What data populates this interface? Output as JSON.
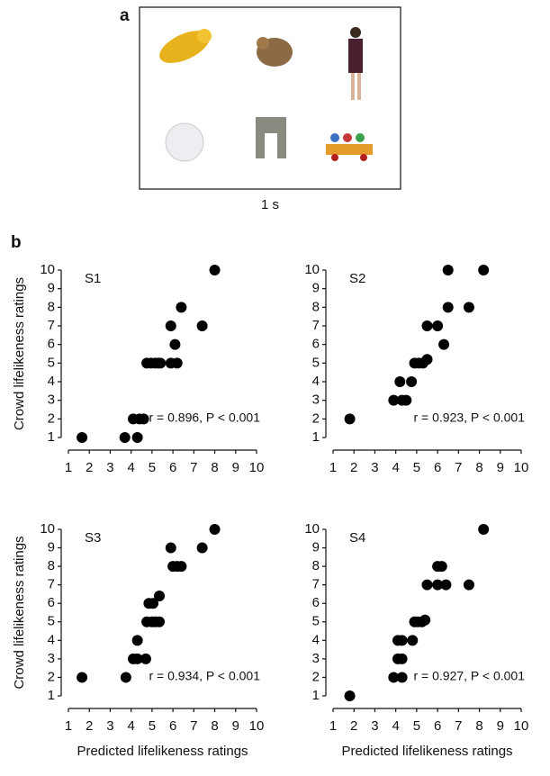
{
  "figure": {
    "panel_a": {
      "label": "a",
      "caption": "1 s"
    },
    "panel_b": {
      "label": "b"
    }
  },
  "chart_data": [
    {
      "type": "scatter",
      "title": "S1",
      "annotation": "r = 0.896, P < 0.001",
      "y_label": "Crowd lifelikeness ratings",
      "color": "#000000",
      "x": [
        1.65,
        3.7,
        4.3,
        4.1,
        4.4,
        4.6,
        4.75,
        4.95,
        5.15,
        5.3,
        5.4,
        5.9,
        6.2,
        5.9,
        6.1,
        6.4,
        7.4,
        8.0
      ],
      "y": [
        1,
        1,
        1,
        2,
        2,
        2,
        5,
        5,
        5,
        5,
        5,
        5,
        5,
        7,
        6,
        8,
        7,
        10
      ],
      "xlim": [
        1,
        10
      ],
      "ylim": [
        1,
        10
      ],
      "xticks": [
        1,
        2,
        3,
        4,
        5,
        6,
        7,
        8,
        9,
        10
      ],
      "yticks": [
        1,
        2,
        3,
        4,
        5,
        6,
        7,
        8,
        9,
        10
      ]
    },
    {
      "type": "scatter",
      "title": "S2",
      "annotation": "r = 0.923, P < 0.001",
      "color": "#000000",
      "x": [
        1.8,
        3.9,
        4.3,
        4.5,
        4.2,
        4.75,
        4.9,
        5.1,
        5.3,
        5.5,
        5.5,
        6.0,
        6.3,
        6.5,
        6.5,
        7.5,
        8.2
      ],
      "y": [
        2,
        3,
        3,
        3,
        4,
        4,
        5,
        5,
        5,
        5.2,
        7,
        7,
        6,
        8,
        10,
        8,
        10
      ],
      "xlim": [
        1,
        10
      ],
      "ylim": [
        1,
        10
      ],
      "xticks": [
        1,
        2,
        3,
        4,
        5,
        6,
        7,
        8,
        9,
        10
      ],
      "yticks": [
        1,
        2,
        3,
        4,
        5,
        6,
        7,
        8,
        9,
        10
      ]
    },
    {
      "type": "scatter",
      "title": "S3",
      "annotation": "r = 0.934, P < 0.001",
      "y_label": "Crowd lifelikeness ratings",
      "x_label": "Predicted lifelikeness ratings",
      "color": "#000000",
      "x": [
        1.65,
        3.75,
        4.1,
        4.3,
        4.7,
        4.3,
        4.75,
        5.0,
        5.15,
        5.35,
        4.85,
        5.05,
        5.35,
        5.9,
        6.0,
        6.2,
        6.4,
        7.4,
        8.0
      ],
      "y": [
        2,
        2,
        3,
        3,
        3,
        4,
        5,
        5,
        5,
        5,
        6,
        6,
        6.4,
        9,
        8,
        8,
        8,
        9,
        10
      ],
      "xlim": [
        1,
        10
      ],
      "ylim": [
        1,
        10
      ],
      "xticks": [
        1,
        2,
        3,
        4,
        5,
        6,
        7,
        8,
        9,
        10
      ],
      "yticks": [
        1,
        2,
        3,
        4,
        5,
        6,
        7,
        8,
        9,
        10
      ]
    },
    {
      "type": "scatter",
      "title": "S4",
      "annotation": "r = 0.927, P < 0.001",
      "x_label": "Predicted lifelikeness ratings",
      "color": "#000000",
      "x": [
        1.8,
        3.9,
        4.3,
        4.1,
        4.3,
        4.1,
        4.3,
        4.8,
        4.9,
        5.05,
        5.25,
        5.4,
        5.5,
        6.0,
        6.2,
        6.0,
        6.4,
        7.5,
        8.2
      ],
      "y": [
        1,
        2,
        2,
        3,
        3,
        4,
        4,
        4,
        5,
        5,
        5,
        5.1,
        7,
        8,
        8,
        7,
        7,
        7,
        10
      ],
      "xlim": [
        1,
        10
      ],
      "ylim": [
        1,
        10
      ],
      "xticks": [
        1,
        2,
        3,
        4,
        5,
        6,
        7,
        8,
        9,
        10
      ],
      "yticks": [
        1,
        2,
        3,
        4,
        5,
        6,
        7,
        8,
        9,
        10
      ]
    }
  ]
}
